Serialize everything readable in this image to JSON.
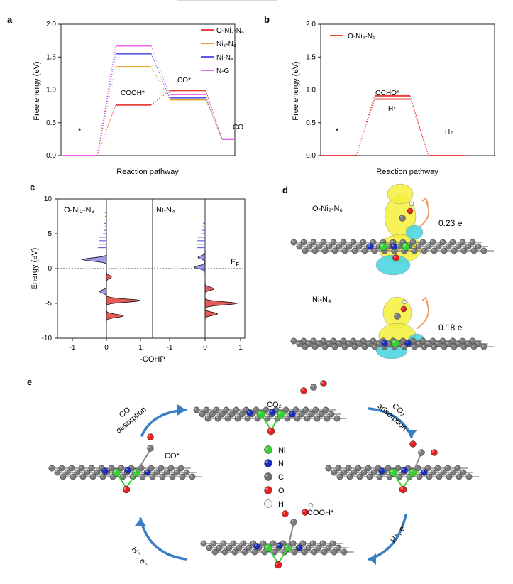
{
  "figure": {
    "panel_labels": [
      "a",
      "b",
      "c",
      "d",
      "e"
    ]
  },
  "panel_a": {
    "ylabel": "Free energy (eV)",
    "xlabel": "Reaction pathway",
    "yticks": [
      "0.0",
      "0.5",
      "1.0",
      "1.5",
      "2.0"
    ],
    "legend": [
      "O-Ni₂-N₆",
      "Ni₂-N₆",
      "Ni-N₄",
      "N-G"
    ],
    "labels": {
      "star": "*",
      "cooh": "COOH*",
      "co_star": "CO*",
      "co": "CO"
    },
    "colors": [
      "#e8413e",
      "#e5a11d",
      "#5a5ae0",
      "#ee67ee"
    ]
  },
  "panel_b": {
    "ylabel": "Free energy (eV)",
    "xlabel": "Reaction pathway",
    "yticks": [
      "0.0",
      "0.5",
      "1.0",
      "1.5",
      "2.0"
    ],
    "legend": [
      "O-Ni₂-N₆"
    ],
    "labels": {
      "star": "*",
      "ocho": "OCHO*",
      "h": "H*",
      "h2": "H₂"
    }
  },
  "panel_c": {
    "ylabel": "Energy (eV)",
    "xlabel": "-COHP",
    "yticks": [
      "10",
      "5",
      "0",
      "-5",
      "-10"
    ],
    "xticks_left": [
      "-1",
      "0",
      "1"
    ],
    "xticks_right": [
      "-1",
      "0",
      "1"
    ],
    "left_title": "O-Ni₂-N₆",
    "right_title": "Ni-N₄",
    "ef_label": "E",
    "ef_sub": "F"
  },
  "panel_d": {
    "label_top": "O-Ni₂-N₆",
    "label_bottom": "Ni-N₄",
    "charge_top": "0.23 e",
    "charge_bottom": "0.18 e"
  },
  "panel_e": {
    "co2": "CO₂",
    "co_desorption": [
      "CO",
      "desorption"
    ],
    "co2_adsorption": [
      "CO₂",
      "adsorption"
    ],
    "co_star": "CO*",
    "cooh_star": "COOH*",
    "h_left": "H⁺, e⁻",
    "h_right": "H⁺, e⁻",
    "legend": [
      {
        "name": "Ni",
        "color": "#35d135"
      },
      {
        "name": "N",
        "color": "#1b2fbf"
      },
      {
        "name": "C",
        "color": "#707070"
      },
      {
        "name": "O",
        "color": "#e52020"
      },
      {
        "name": "H",
        "color": "#f2f2f2"
      }
    ]
  },
  "chart_data": [
    {
      "type": "line",
      "title": "",
      "xlabel": "Reaction pathway",
      "ylabel": "Free energy (eV)",
      "ylim": [
        0,
        2.0
      ],
      "categories": [
        "*",
        "COOH*",
        "CO*",
        "CO"
      ],
      "series": [
        {
          "name": "O-Ni₂-N₆",
          "values": [
            0,
            0.77,
            0.99,
            0.25
          ]
        },
        {
          "name": "Ni₂-N₆",
          "values": [
            0,
            1.35,
            0.85,
            0.25
          ]
        },
        {
          "name": "Ni-N₄",
          "values": [
            0,
            1.55,
            0.88,
            0.25
          ]
        },
        {
          "name": "N-G",
          "values": [
            0,
            1.67,
            0.93,
            0.25
          ]
        }
      ],
      "legend_position": "top-right"
    },
    {
      "type": "line",
      "title": "",
      "xlabel": "Reaction pathway",
      "ylabel": "Free energy (eV)",
      "ylim": [
        0,
        2.0
      ],
      "categories": [
        "*",
        "OCHO*/H*",
        "H₂"
      ],
      "series": [
        {
          "name": "O-Ni₂-N₆ (OCHO*)",
          "values": [
            0,
            0.91,
            0
          ]
        },
        {
          "name": "O-Ni₂-N₆ (H*)",
          "values": [
            0,
            0.86,
            0
          ]
        }
      ],
      "legend_position": "top-left"
    },
    {
      "type": "area",
      "title": "",
      "xlabel": "-COHP",
      "ylabel": "Energy (eV)",
      "ylim": [
        -10,
        10
      ],
      "series": [
        {
          "name": "O-Ni₂-N₆",
          "peaks": [
            [
              1.3,
              -0.7
            ],
            [
              -3.3,
              -0.2
            ],
            [
              -1.2,
              0.15
            ],
            [
              -4.6,
              1.0
            ],
            [
              -6.8,
              0.5
            ]
          ]
        },
        {
          "name": "Ni-N₄",
          "peaks": [
            [
              0.2,
              -0.3
            ],
            [
              1.6,
              -0.2
            ],
            [
              -2.9,
              0.25
            ],
            [
              -5.0,
              0.9
            ],
            [
              -6.5,
              0.35
            ]
          ]
        }
      ]
    }
  ]
}
